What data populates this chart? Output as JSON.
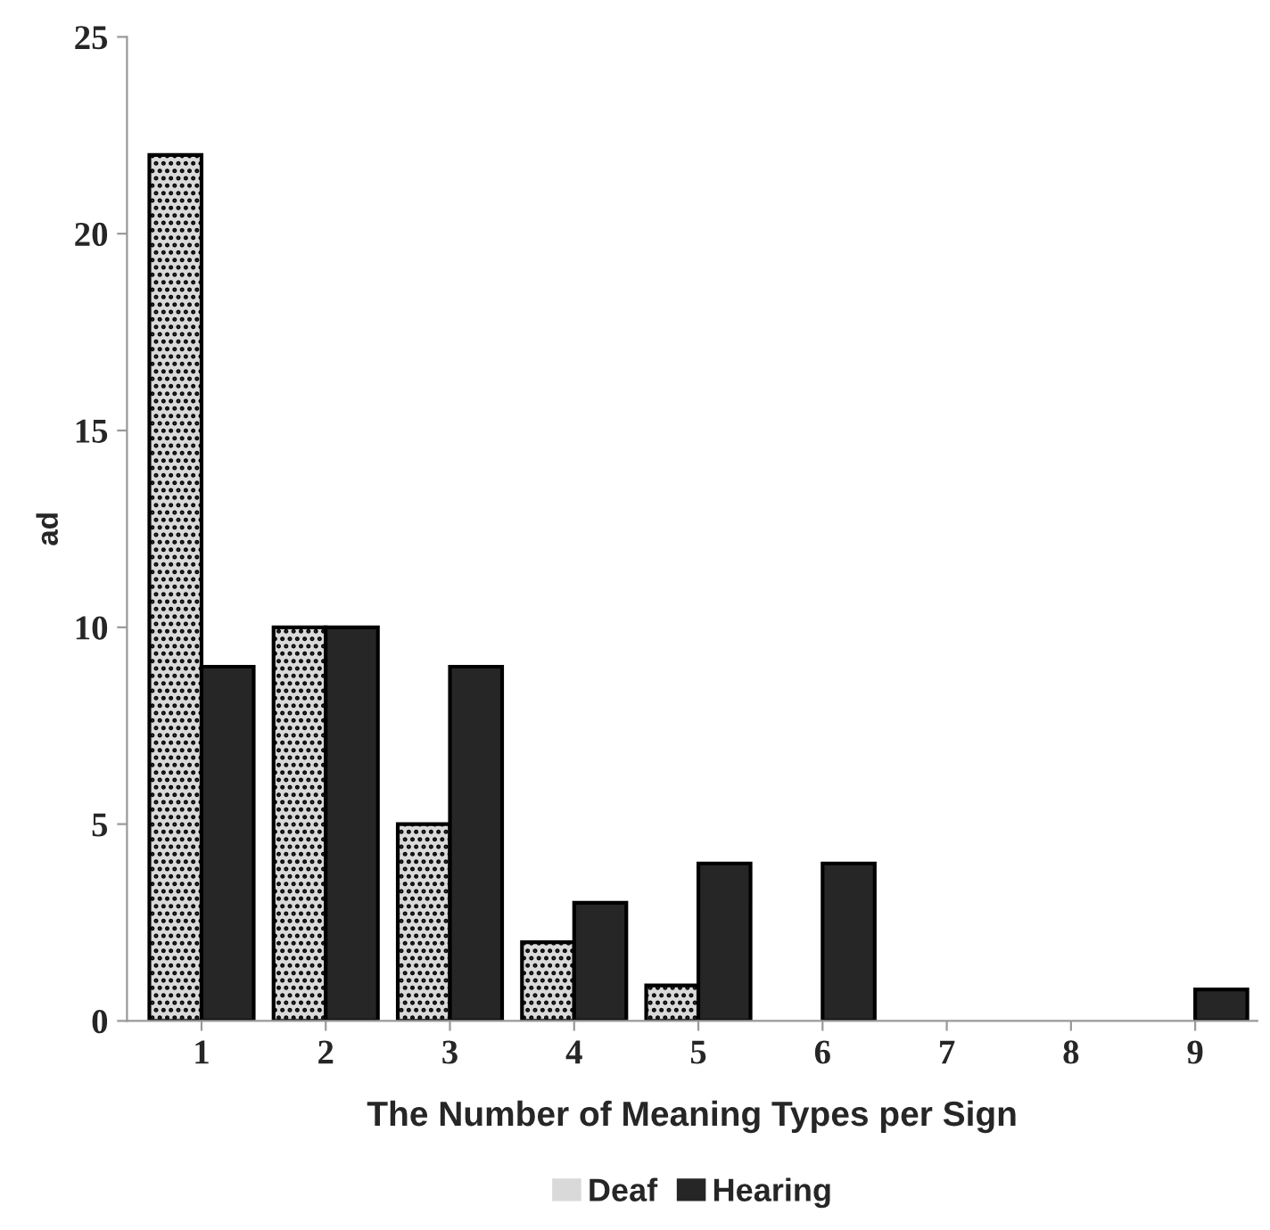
{
  "chart_data": {
    "type": "bar",
    "xlabel": "The Number of Meaning Types per Sign",
    "ylabel": "ad",
    "categories": [
      "1",
      "2",
      "3",
      "4",
      "5",
      "6",
      "7",
      "8",
      "9"
    ],
    "series": [
      {
        "name": "Deaf",
        "color": "#d9d9d9",
        "values": [
          22,
          10,
          5,
          2,
          0.9,
          0,
          0,
          0,
          0
        ]
      },
      {
        "name": "Hearing",
        "color": "#262626",
        "values": [
          9,
          10,
          9,
          3,
          4,
          4,
          0,
          0,
          0.8
        ]
      }
    ],
    "ylim": [
      0,
      25
    ],
    "yticks": [
      0,
      5,
      10,
      15,
      20,
      25
    ],
    "grid": false,
    "legend": "bottom"
  }
}
